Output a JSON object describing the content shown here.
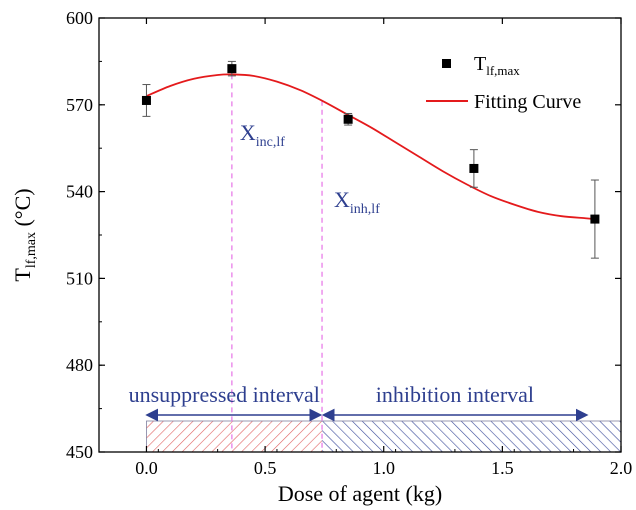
{
  "chart_data": {
    "type": "scatter",
    "xlabel": "Dose of agent (kg)",
    "ylabel_main": "T",
    "ylabel_sub": "lf,max",
    "ylabel_unit": " (°C)",
    "xlim": [
      -0.2,
      2.0
    ],
    "ylim": [
      450,
      600
    ],
    "xticks": [
      "0.0",
      "0.5",
      "1.0",
      "1.5",
      "2.0"
    ],
    "xtick_values": [
      0.0,
      0.5,
      1.0,
      1.5,
      2.0
    ],
    "yticks": [
      "450",
      "480",
      "510",
      "540",
      "570",
      "600"
    ],
    "ytick_values": [
      450,
      480,
      510,
      540,
      570,
      600
    ],
    "grid": false,
    "legend_position": "top-right",
    "series": [
      {
        "name_main": "T",
        "name_sub": "lf,max",
        "kind": "scatter",
        "color": "#000000",
        "x": [
          0.0,
          0.36,
          0.85,
          1.38,
          1.89
        ],
        "y": [
          571.5,
          582.5,
          565.0,
          548.0,
          530.5
        ],
        "err": [
          5.5,
          2.5,
          2.0,
          6.5,
          13.5
        ]
      },
      {
        "name": "Fitting Curve",
        "kind": "line",
        "color": "#e41a1c",
        "x": [
          0.0,
          0.1,
          0.2,
          0.3,
          0.36,
          0.45,
          0.55,
          0.65,
          0.75,
          0.85,
          0.95,
          1.05,
          1.15,
          1.25,
          1.35,
          1.45,
          1.55,
          1.65,
          1.75,
          1.85,
          1.89
        ],
        "y": [
          573.0,
          576.5,
          579.0,
          580.3,
          580.5,
          580.0,
          578.0,
          575.0,
          571.0,
          566.5,
          562.0,
          557.0,
          552.0,
          547.0,
          542.5,
          538.5,
          535.5,
          533.0,
          531.5,
          530.8,
          530.5
        ]
      }
    ],
    "annotations": [
      {
        "main": "X",
        "sub": "inc,lf",
        "x_ref": 0.36
      },
      {
        "main": "X",
        "sub": "inh,lf",
        "x_ref": 0.74
      }
    ],
    "intervals": [
      {
        "label": "unsuppressed interval",
        "from": 0.0,
        "to": 0.74,
        "color": "#e06060"
      },
      {
        "label": "inhibition interval",
        "from": 0.74,
        "to": 2.0,
        "color": "#3a4a9a"
      }
    ],
    "colors": {
      "annotation": "#2e3f8f",
      "marker_line": "#e87de8",
      "axis": "#000000"
    }
  }
}
